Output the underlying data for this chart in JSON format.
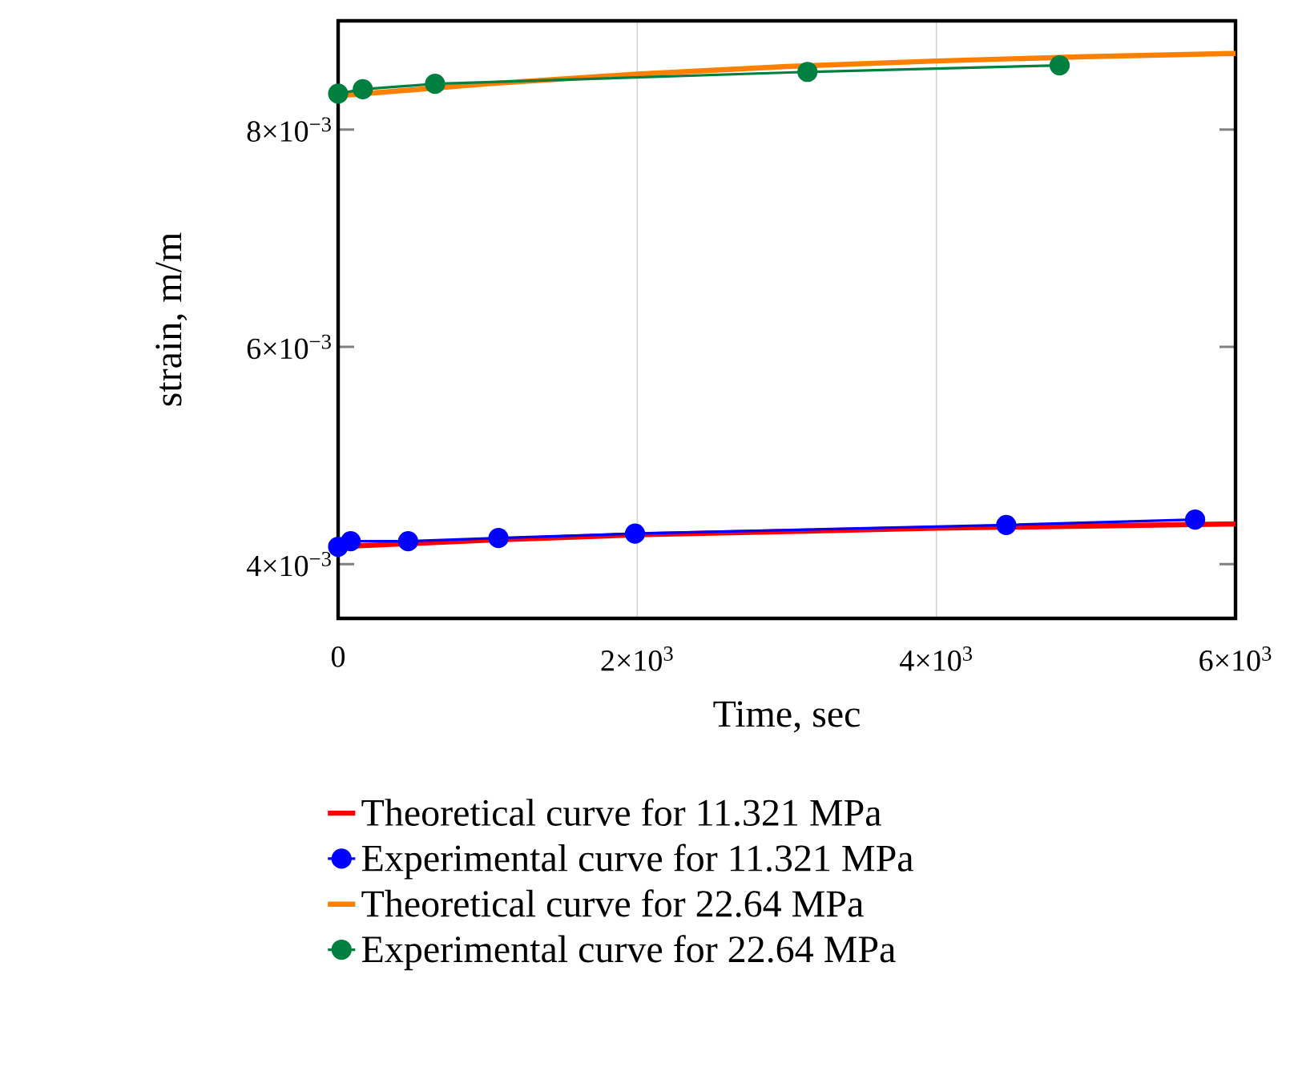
{
  "chart_data": {
    "type": "line",
    "xlabel": "Time, sec",
    "ylabel": "strain, m/m",
    "xlim": [
      0,
      6000
    ],
    "ylim": [
      0.0035,
      0.009
    ],
    "xticks": [
      0,
      {
        "value": 2000,
        "label": "2×10$^{3}$"
      },
      {
        "value": 4000,
        "label": "4×10$^{3}$"
      },
      {
        "value": 6000,
        "label": "6×10$^{3}$"
      }
    ],
    "yticks": [
      {
        "value": 0.004,
        "label": "4×10$^{−3}$"
      },
      {
        "value": 0.006,
        "label": "6×10$^{−3}$"
      },
      {
        "value": 0.008,
        "label": "8×10$^{−3}$"
      }
    ],
    "grid": "x",
    "legend": "bottom",
    "series": [
      {
        "name": "Theoretical curve for 11.321 MPa",
        "color": "#ff0000",
        "marker": "none",
        "x": [
          0,
          1000,
          2000,
          3000,
          4000,
          5000,
          6000
        ],
        "values": [
          0.00416,
          0.00422,
          0.00427,
          0.0043,
          0.00433,
          0.00435,
          0.00437
        ]
      },
      {
        "name": "Experimental curve for 11.321 MPa",
        "color": "#0000ff",
        "marker": "circle",
        "x": [
          0,
          84,
          468,
          1072,
          1985,
          4467,
          5730
        ],
        "values": [
          0.00416,
          0.00421,
          0.00421,
          0.00424,
          0.00428,
          0.00436,
          0.00441
        ]
      },
      {
        "name": "Theoretical curve for 22.64 MPa",
        "color": "#ff7f00",
        "marker": "none",
        "x": [
          0,
          1000,
          2000,
          3000,
          4000,
          5000,
          6000
        ],
        "values": [
          0.00831,
          0.00842,
          0.00851,
          0.00858,
          0.00863,
          0.00867,
          0.0087
        ]
      },
      {
        "name": "Experimental curve for 22.64 MPa",
        "color": "#008040",
        "marker": "circle",
        "x": [
          0,
          165,
          648,
          3138,
          4824
        ],
        "values": [
          0.00833,
          0.00837,
          0.00842,
          0.00853,
          0.00859
        ]
      }
    ]
  }
}
